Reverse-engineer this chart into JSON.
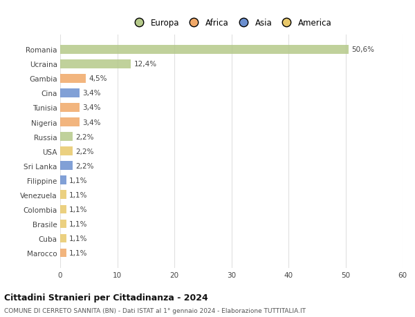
{
  "countries": [
    "Romania",
    "Ucraina",
    "Gambia",
    "Cina",
    "Tunisia",
    "Nigeria",
    "Russia",
    "USA",
    "Sri Lanka",
    "Filippine",
    "Venezuela",
    "Colombia",
    "Brasile",
    "Cuba",
    "Marocco"
  ],
  "values": [
    50.6,
    12.4,
    4.5,
    3.4,
    3.4,
    3.4,
    2.2,
    2.2,
    2.2,
    1.1,
    1.1,
    1.1,
    1.1,
    1.1,
    1.1
  ],
  "labels": [
    "50,6%",
    "12,4%",
    "4,5%",
    "3,4%",
    "3,4%",
    "3,4%",
    "2,2%",
    "2,2%",
    "2,2%",
    "1,1%",
    "1,1%",
    "1,1%",
    "1,1%",
    "1,1%",
    "1,1%"
  ],
  "colors": [
    "#b5c98a",
    "#b5c98a",
    "#f0a868",
    "#6b8fcf",
    "#f0a868",
    "#f0a868",
    "#b5c98a",
    "#e8c86a",
    "#6b8fcf",
    "#6b8fcf",
    "#e8c86a",
    "#e8c86a",
    "#e8c86a",
    "#e8c86a",
    "#f0a868"
  ],
  "legend_labels": [
    "Europa",
    "Africa",
    "Asia",
    "America"
  ],
  "legend_colors": [
    "#b5c98a",
    "#f0a868",
    "#6b8fcf",
    "#e8c86a"
  ],
  "title": "Cittadini Stranieri per Cittadinanza - 2024",
  "subtitle": "COMUNE DI CERRETO SANNITA (BN) - Dati ISTAT al 1° gennaio 2024 - Elaborazione TUTTITALIA.IT",
  "xlim": [
    0,
    60
  ],
  "xticks": [
    0,
    10,
    20,
    30,
    40,
    50,
    60
  ],
  "background_color": "#ffffff",
  "grid_color": "#e0e0e0",
  "bar_height": 0.6
}
